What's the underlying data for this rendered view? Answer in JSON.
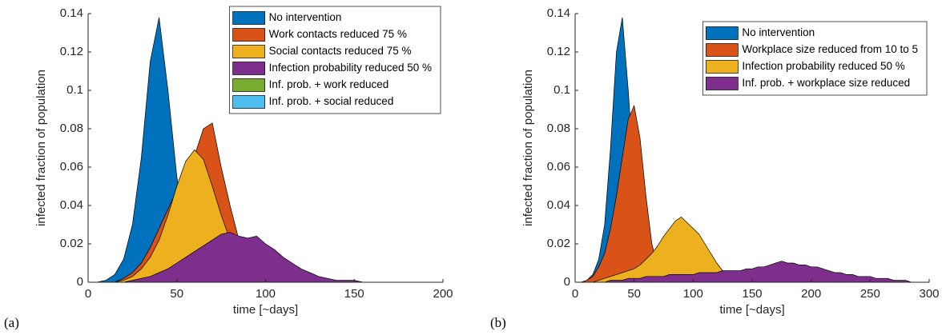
{
  "chart_data": [
    {
      "type": "area",
      "panel_label": "(a)",
      "xlabel": "time [~days]",
      "ylabel": "infected fraction of population",
      "xlim": [
        0,
        200
      ],
      "ylim": [
        0,
        0.14
      ],
      "xticks": [
        0,
        50,
        100,
        150,
        200
      ],
      "yticks": [
        0,
        0.02,
        0.04,
        0.06,
        0.08,
        0.1,
        0.12,
        0.14
      ],
      "legend": "upper right",
      "x": [
        0,
        5,
        10,
        15,
        20,
        25,
        30,
        35,
        40,
        45,
        50,
        55,
        60,
        65,
        70,
        75,
        80,
        85,
        90,
        95,
        100,
        105,
        110,
        115,
        120,
        125,
        130,
        135,
        140,
        145,
        150,
        155,
        160,
        165,
        170,
        175,
        180,
        185,
        190,
        195,
        200
      ],
      "series": [
        {
          "name": "No intervention",
          "color": "#0072BD",
          "values": [
            0,
            0,
            0.001,
            0.004,
            0.012,
            0.03,
            0.065,
            0.115,
            0.138,
            0.1,
            0.055,
            0.025,
            0.01,
            0.004,
            0.001,
            0,
            0,
            0,
            0,
            0,
            0,
            0,
            0,
            0,
            0,
            0,
            0,
            0,
            0,
            0,
            0,
            0,
            0,
            0,
            0,
            0,
            0,
            0,
            0,
            0,
            0
          ]
        },
        {
          "name": "Work contacts reduced 75 %",
          "color": "#D95319",
          "values": [
            0,
            0,
            0,
            0,
            0.002,
            0.005,
            0.01,
            0.018,
            0.028,
            0.038,
            0.048,
            0.058,
            0.066,
            0.08,
            0.083,
            0.06,
            0.04,
            0.022,
            0.012,
            0.006,
            0.003,
            0.001,
            0,
            0,
            0,
            0,
            0,
            0,
            0,
            0,
            0,
            0,
            0,
            0,
            0,
            0,
            0,
            0,
            0,
            0,
            0
          ]
        },
        {
          "name": "Social contacts reduced 75 %",
          "color": "#EDB120",
          "values": [
            0,
            0,
            0,
            0,
            0.001,
            0.003,
            0.007,
            0.013,
            0.022,
            0.035,
            0.05,
            0.063,
            0.069,
            0.064,
            0.05,
            0.035,
            0.022,
            0.013,
            0.008,
            0.005,
            0.003,
            0.002,
            0.001,
            0,
            0,
            0,
            0,
            0,
            0,
            0,
            0,
            0,
            0,
            0,
            0,
            0,
            0,
            0,
            0,
            0,
            0
          ]
        },
        {
          "name": "Infection probability reduced 50 %",
          "color": "#7E2F8E",
          "values": [
            0,
            0,
            0,
            0,
            0,
            0.001,
            0.002,
            0.003,
            0.005,
            0.007,
            0.01,
            0.013,
            0.016,
            0.019,
            0.022,
            0.025,
            0.026,
            0.024,
            0.023,
            0.024,
            0.02,
            0.017,
            0.013,
            0.01,
            0.007,
            0.005,
            0.003,
            0.002,
            0.001,
            0.001,
            0.001,
            0,
            0,
            0,
            0,
            0,
            0,
            0,
            0,
            0,
            0
          ]
        },
        {
          "name": "Inf. prob. + work reduced",
          "color": "#77AC30",
          "values": [
            0,
            0,
            0,
            0,
            0,
            0,
            0,
            0,
            0,
            0,
            0,
            0,
            0,
            0,
            0,
            0,
            0,
            0,
            0,
            0,
            0,
            0,
            0,
            0,
            0,
            0,
            0,
            0,
            0,
            0,
            0,
            0,
            0,
            0,
            0,
            0,
            0,
            0,
            0,
            0,
            0
          ]
        },
        {
          "name": "Inf. prob. + social reduced",
          "color": "#4DBEEE",
          "values": [
            0,
            0,
            0,
            0,
            0,
            0,
            0,
            0,
            0,
            0,
            0,
            0,
            0,
            0,
            0,
            0,
            0,
            0,
            0,
            0,
            0,
            0,
            0,
            0,
            0,
            0,
            0,
            0,
            0,
            0,
            0,
            0,
            0,
            0,
            0,
            0,
            0,
            0,
            0,
            0,
            0
          ]
        }
      ]
    },
    {
      "type": "area",
      "panel_label": "(b)",
      "xlabel": "time [~days]",
      "ylabel": "infected fraction of population",
      "xlim": [
        0,
        300
      ],
      "ylim": [
        0,
        0.14
      ],
      "xticks": [
        0,
        50,
        100,
        150,
        200,
        250,
        300
      ],
      "yticks": [
        0,
        0.02,
        0.04,
        0.06,
        0.08,
        0.1,
        0.12,
        0.14
      ],
      "legend": "upper right",
      "x": [
        0,
        5,
        10,
        15,
        20,
        25,
        30,
        35,
        40,
        45,
        50,
        55,
        60,
        65,
        70,
        75,
        80,
        85,
        90,
        95,
        100,
        105,
        110,
        115,
        120,
        125,
        130,
        135,
        140,
        145,
        150,
        155,
        160,
        165,
        170,
        175,
        180,
        185,
        190,
        195,
        200,
        205,
        210,
        215,
        220,
        225,
        230,
        235,
        240,
        245,
        250,
        255,
        260,
        265,
        270,
        275,
        280,
        285,
        290,
        295,
        300
      ],
      "series": [
        {
          "name": "No intervention",
          "color": "#0072BD",
          "values": [
            0,
            0,
            0.001,
            0.004,
            0.012,
            0.03,
            0.07,
            0.12,
            0.138,
            0.1,
            0.055,
            0.025,
            0.01,
            0.004,
            0.001,
            0,
            0,
            0,
            0,
            0,
            0,
            0,
            0,
            0,
            0,
            0,
            0,
            0,
            0,
            0,
            0,
            0,
            0,
            0,
            0,
            0,
            0,
            0,
            0,
            0,
            0,
            0,
            0,
            0,
            0,
            0,
            0,
            0,
            0,
            0,
            0,
            0,
            0,
            0,
            0,
            0,
            0,
            0,
            0,
            0,
            0
          ]
        },
        {
          "name": "Workplace size reduced from 10 to 5",
          "color": "#D95319",
          "values": [
            0,
            0,
            0.001,
            0.003,
            0.008,
            0.015,
            0.028,
            0.045,
            0.065,
            0.085,
            0.092,
            0.075,
            0.045,
            0.02,
            0.008,
            0.003,
            0.001,
            0,
            0,
            0,
            0,
            0,
            0,
            0,
            0,
            0,
            0,
            0,
            0,
            0,
            0,
            0,
            0,
            0,
            0,
            0,
            0,
            0,
            0,
            0,
            0,
            0,
            0,
            0,
            0,
            0,
            0,
            0,
            0,
            0,
            0,
            0,
            0,
            0,
            0,
            0,
            0,
            0,
            0,
            0,
            0
          ]
        },
        {
          "name": "Infection probability reduced 50 %",
          "color": "#EDB120",
          "values": [
            0,
            0,
            0,
            0,
            0.001,
            0.002,
            0.003,
            0.004,
            0.005,
            0.006,
            0.007,
            0.009,
            0.012,
            0.015,
            0.019,
            0.024,
            0.028,
            0.032,
            0.034,
            0.031,
            0.028,
            0.025,
            0.02,
            0.015,
            0.01,
            0.006,
            0.003,
            0.002,
            0.001,
            0,
            0,
            0,
            0,
            0,
            0,
            0,
            0,
            0,
            0,
            0,
            0,
            0,
            0,
            0,
            0,
            0,
            0,
            0,
            0,
            0,
            0,
            0,
            0,
            0,
            0,
            0,
            0,
            0,
            0,
            0,
            0
          ]
        },
        {
          "name": "Inf. prob. + workplace size reduced",
          "color": "#7E2F8E",
          "values": [
            0,
            0,
            0,
            0,
            0,
            0,
            0.001,
            0.001,
            0.001,
            0.002,
            0.002,
            0.002,
            0.003,
            0.003,
            0.003,
            0.003,
            0.004,
            0.004,
            0.004,
            0.004,
            0.004,
            0.005,
            0.005,
            0.005,
            0.005,
            0.006,
            0.006,
            0.006,
            0.006,
            0.007,
            0.007,
            0.008,
            0.008,
            0.009,
            0.01,
            0.011,
            0.01,
            0.01,
            0.009,
            0.009,
            0.008,
            0.008,
            0.007,
            0.006,
            0.005,
            0.005,
            0.004,
            0.004,
            0.003,
            0.003,
            0.003,
            0.002,
            0.002,
            0.002,
            0.001,
            0.001,
            0.001,
            0,
            0,
            0,
            0
          ]
        }
      ]
    }
  ]
}
